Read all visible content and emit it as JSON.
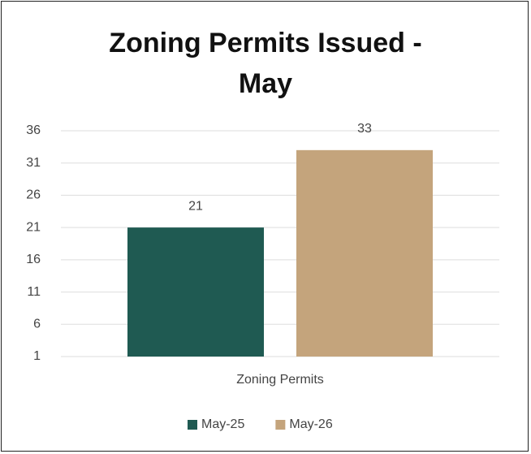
{
  "chart_data": {
    "type": "bar",
    "title": "Zoning Permits Issued - May",
    "categories": [
      "Zoning Permits"
    ],
    "series": [
      {
        "name": "May-25",
        "color": "#1f5a52",
        "values": [
          21
        ]
      },
      {
        "name": "May-26",
        "color": "#c4a47c",
        "values": [
          33
        ]
      }
    ],
    "ylim": [
      1,
      36
    ],
    "yticks": [
      1,
      6,
      11,
      16,
      21,
      26,
      31,
      36
    ],
    "grid": true,
    "legend": "bottom"
  }
}
